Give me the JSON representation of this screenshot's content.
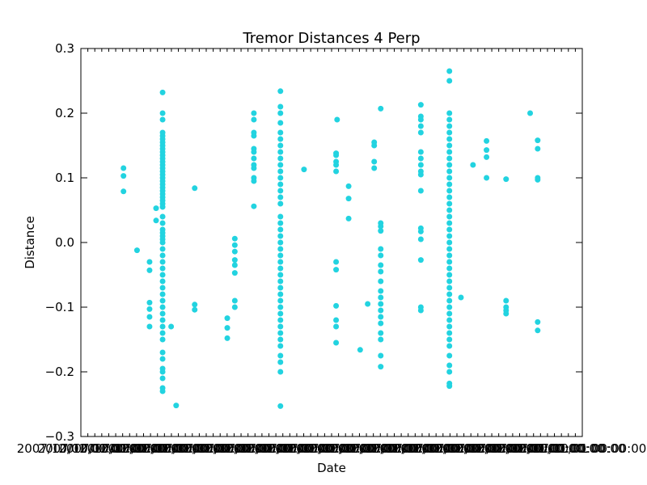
{
  "chart_data": {
    "type": "scatter",
    "title": "Tremor Distances 4 Perp",
    "xlabel": "Date",
    "ylabel": "Distance",
    "ylim": [
      -0.3,
      0.3
    ],
    "y_ticks": [
      "−0.3",
      "−0.2",
      "−0.1",
      "0.0",
      "0.1",
      "0.2",
      "0.3"
    ],
    "x_tick_label_text": "2007/10/01 00:00:00",
    "x_tick_count": 73,
    "grid": false,
    "marker_color": "#22d3e0",
    "marker_shape": "circle",
    "series": [
      {
        "name": "",
        "clusters": [
          {
            "x": 0.085,
            "ys": [
              0.115,
              0.103,
              0.079
            ]
          },
          {
            "x": 0.112,
            "ys": [
              -0.012
            ]
          },
          {
            "x": 0.137,
            "ys": [
              -0.03,
              -0.043,
              -0.093,
              -0.103,
              -0.115,
              -0.13
            ]
          },
          {
            "x": 0.15,
            "ys": [
              0.053,
              0.034
            ]
          },
          {
            "x": 0.163,
            "ys": [
              0.232,
              0.2,
              0.19,
              0.17,
              0.165,
              0.16,
              0.155,
              0.15,
              0.145,
              0.14,
              0.135,
              0.13,
              0.125,
              0.12,
              0.115,
              0.11,
              0.105,
              0.1,
              0.095,
              0.09,
              0.085,
              0.08,
              0.075,
              0.07,
              0.065,
              0.06,
              0.055,
              0.04,
              0.03,
              0.02,
              0.015,
              0.01,
              0.005,
              0.0,
              -0.01,
              -0.02,
              -0.03,
              -0.04,
              -0.05,
              -0.06,
              -0.07,
              -0.08,
              -0.09,
              -0.1,
              -0.11,
              -0.12,
              -0.13,
              -0.14,
              -0.15,
              -0.17,
              -0.18,
              -0.195,
              -0.2,
              -0.21,
              -0.225,
              -0.23
            ]
          },
          {
            "x": 0.18,
            "ys": [
              -0.13
            ]
          },
          {
            "x": 0.19,
            "ys": [
              -0.252
            ]
          },
          {
            "x": 0.227,
            "ys": [
              0.084,
              -0.096,
              -0.104
            ]
          },
          {
            "x": 0.292,
            "ys": [
              -0.117,
              -0.132,
              -0.148
            ]
          },
          {
            "x": 0.307,
            "ys": [
              0.006,
              -0.004,
              -0.014,
              -0.027,
              -0.035,
              -0.047,
              -0.09,
              -0.1
            ]
          },
          {
            "x": 0.345,
            "ys": [
              0.2,
              0.19,
              0.17,
              0.165,
              0.145,
              0.14,
              0.13,
              0.12,
              0.115,
              0.1,
              0.095,
              0.056
            ]
          },
          {
            "x": 0.398,
            "ys": [
              0.234,
              0.21,
              0.2,
              0.185,
              0.17,
              0.16,
              0.15,
              0.14,
              0.13,
              0.12,
              0.11,
              0.1,
              0.09,
              0.08,
              0.07,
              0.06,
              0.04,
              0.03,
              0.02,
              0.01,
              0.0,
              -0.01,
              -0.02,
              -0.03,
              -0.04,
              -0.05,
              -0.06,
              -0.07,
              -0.08,
              -0.09,
              -0.1,
              -0.11,
              -0.12,
              -0.13,
              -0.14,
              -0.15,
              -0.16,
              -0.175,
              -0.185,
              -0.2,
              -0.253
            ]
          },
          {
            "x": 0.445,
            "ys": [
              0.113
            ]
          },
          {
            "x": 0.509,
            "ys": [
              0.138,
              0.135,
              0.125,
              0.12,
              0.11,
              -0.03,
              -0.042,
              -0.098,
              -0.12,
              -0.13,
              -0.155
            ]
          },
          {
            "x": 0.511,
            "ys": [
              0.19
            ]
          },
          {
            "x": 0.534,
            "ys": [
              0.087,
              0.068,
              0.037
            ]
          },
          {
            "x": 0.557,
            "ys": [
              -0.166
            ]
          },
          {
            "x": 0.572,
            "ys": [
              -0.095
            ]
          },
          {
            "x": 0.585,
            "ys": [
              0.155,
              0.15,
              0.125,
              0.115
            ]
          },
          {
            "x": 0.598,
            "ys": [
              0.207,
              0.03,
              0.025,
              0.018,
              -0.01,
              -0.02,
              -0.035,
              -0.045,
              -0.06,
              -0.075,
              -0.085,
              -0.095,
              -0.105,
              -0.115,
              -0.125,
              -0.14,
              -0.15,
              -0.175,
              -0.192
            ]
          },
          {
            "x": 0.678,
            "ys": [
              0.213,
              0.195,
              0.19,
              0.18,
              0.17,
              0.14,
              0.13,
              0.12,
              0.11,
              0.105,
              0.08,
              0.022,
              0.017,
              0.005,
              -0.027,
              -0.1,
              -0.105
            ]
          },
          {
            "x": 0.735,
            "ys": [
              0.265,
              0.25,
              0.2,
              0.19,
              0.18,
              0.17,
              0.16,
              0.15,
              0.14,
              0.13,
              0.12,
              0.11,
              0.1,
              0.09,
              0.08,
              0.07,
              0.06,
              0.05,
              0.04,
              0.03,
              0.02,
              0.01,
              0.0,
              -0.01,
              -0.02,
              -0.03,
              -0.04,
              -0.05,
              -0.06,
              -0.07,
              -0.08,
              -0.09,
              -0.1,
              -0.11,
              -0.12,
              -0.13,
              -0.14,
              -0.15,
              -0.16,
              -0.175,
              -0.19,
              -0.2,
              -0.218,
              -0.222
            ]
          },
          {
            "x": 0.758,
            "ys": [
              -0.085
            ]
          },
          {
            "x": 0.782,
            "ys": [
              0.12
            ]
          },
          {
            "x": 0.809,
            "ys": [
              0.157,
              0.143,
              0.132,
              0.1
            ]
          },
          {
            "x": 0.848,
            "ys": [
              0.098,
              -0.09,
              -0.1,
              -0.105,
              -0.11
            ]
          },
          {
            "x": 0.896,
            "ys": [
              0.2
            ]
          },
          {
            "x": 0.911,
            "ys": [
              0.158,
              0.145,
              0.1,
              0.097,
              -0.123,
              -0.136
            ]
          }
        ]
      }
    ]
  }
}
